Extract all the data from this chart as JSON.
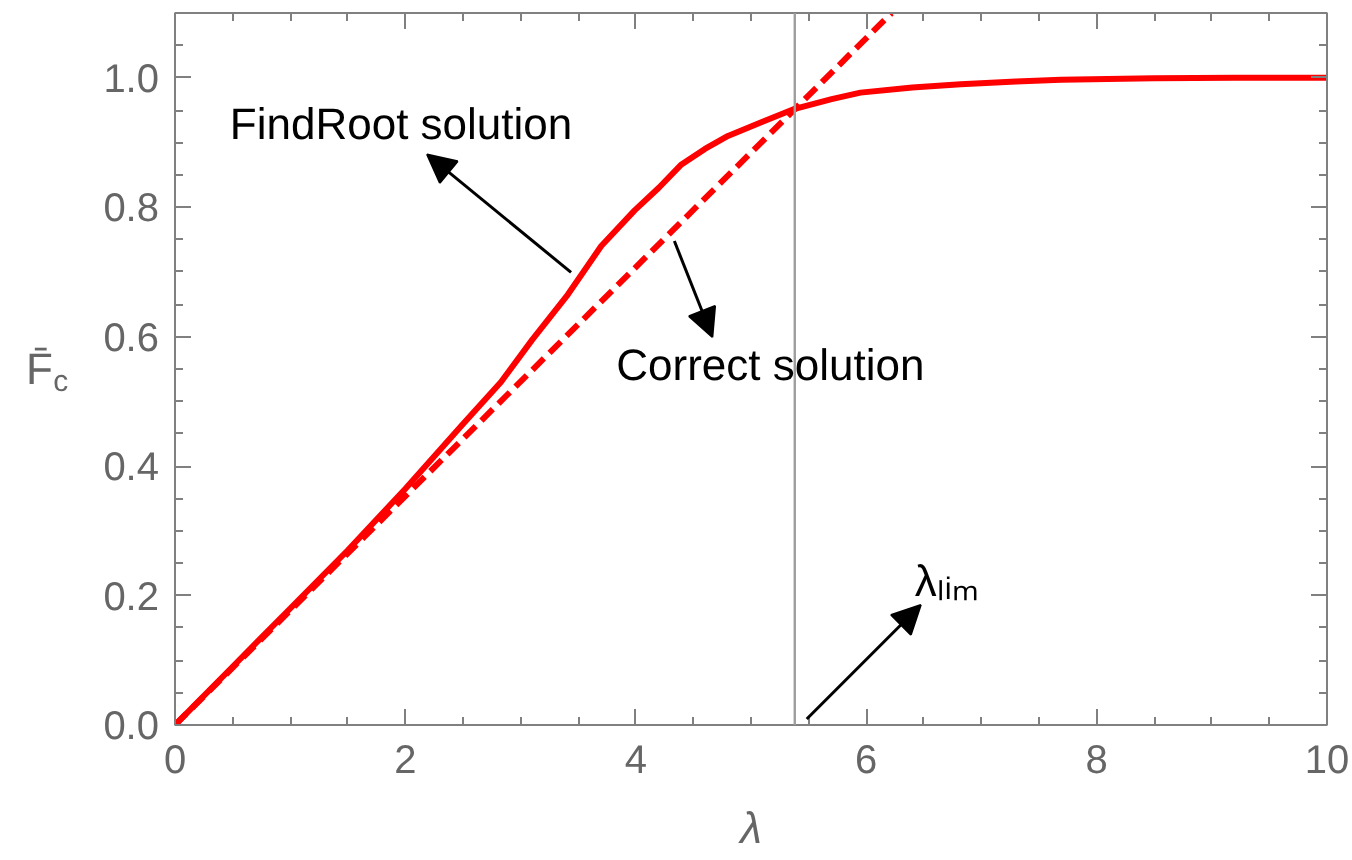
{
  "chart_data": {
    "type": "line",
    "xlabel": "λ",
    "ylabel": "F̄$_{c}$",
    "xlim": [
      0,
      10
    ],
    "ylim": [
      0,
      1.1
    ],
    "xticks": [
      0,
      {
        "value": 0.5,
        "label": null
      },
      {
        "value": 1,
        "label": null
      },
      {
        "value": 1.5,
        "label": null
      },
      2,
      {
        "value": 2.5,
        "label": null
      },
      {
        "value": 3,
        "label": null
      },
      {
        "value": 3.5,
        "label": null
      },
      4,
      {
        "value": 4.5,
        "label": null
      },
      {
        "value": 5,
        "label": null
      },
      {
        "value": 5.5,
        "label": null
      },
      6,
      {
        "value": 6.5,
        "label": null
      },
      {
        "value": 7,
        "label": null
      },
      {
        "value": 7.5,
        "label": null
      },
      8,
      {
        "value": 8.5,
        "label": null
      },
      {
        "value": 9,
        "label": null
      },
      {
        "value": 9.5,
        "label": null
      },
      10
    ],
    "yticks": [
      {
        "value": 0,
        "label": "0.0"
      },
      {
        "value": 0.05,
        "label": null
      },
      {
        "value": 0.1,
        "label": null
      },
      {
        "value": 0.15,
        "label": null
      },
      0.2,
      {
        "value": 0.25,
        "label": null
      },
      {
        "value": 0.3,
        "label": null
      },
      {
        "value": 0.35,
        "label": null
      },
      0.4,
      {
        "value": 0.45,
        "label": null
      },
      {
        "value": 0.5,
        "label": null
      },
      {
        "value": 0.55,
        "label": null
      },
      0.6,
      {
        "value": 0.65,
        "label": null
      },
      {
        "value": 0.7,
        "label": null
      },
      {
        "value": 0.75,
        "label": null
      },
      0.8,
      {
        "value": 0.85,
        "label": null
      },
      {
        "value": 0.9,
        "label": null
      },
      {
        "value": 0.95,
        "label": null
      },
      {
        "value": 1,
        "label": "1.0"
      },
      {
        "value": 1.05,
        "label": null
      }
    ],
    "series": [
      {
        "color": "#ff0000",
        "line_style": "solid",
        "x": [
          0,
          0.5,
          1,
          1.5,
          2,
          2.5,
          2.83,
          3.1,
          3.41,
          3.7,
          3.99,
          4.2,
          4.39,
          4.6,
          4.8,
          5.1,
          5.38,
          5.7,
          5.95,
          6.4,
          6.82,
          7.3,
          7.69,
          8.5,
          9.2,
          10
        ],
        "values": [
          0,
          0.09,
          0.18,
          0.27,
          0.365,
          0.465,
          0.53,
          0.595,
          0.665,
          0.74,
          0.795,
          0.83,
          0.865,
          0.89,
          0.91,
          0.932,
          0.952,
          0.967,
          0.977,
          0.985,
          0.99,
          0.994,
          0.997,
          0.999,
          1,
          1
        ]
      },
      {
        "color": "#ff0000",
        "line_style": "dashed",
        "x": [
          0,
          6.22
        ],
        "values": [
          0,
          1.1
        ]
      }
    ],
    "ref_lines": [
      {
        "axis": "x",
        "value": 5.38,
        "label": "λₗᵢₘ",
        "color": "#9e9e9e"
      }
    ],
    "annotations": [
      {
        "text": "FindRoot solution",
        "x": 3.49,
        "y": 0.69
      },
      {
        "text": "Correct solution",
        "x": 4.3,
        "y": 0.76
      }
    ],
    "grid": false
  }
}
